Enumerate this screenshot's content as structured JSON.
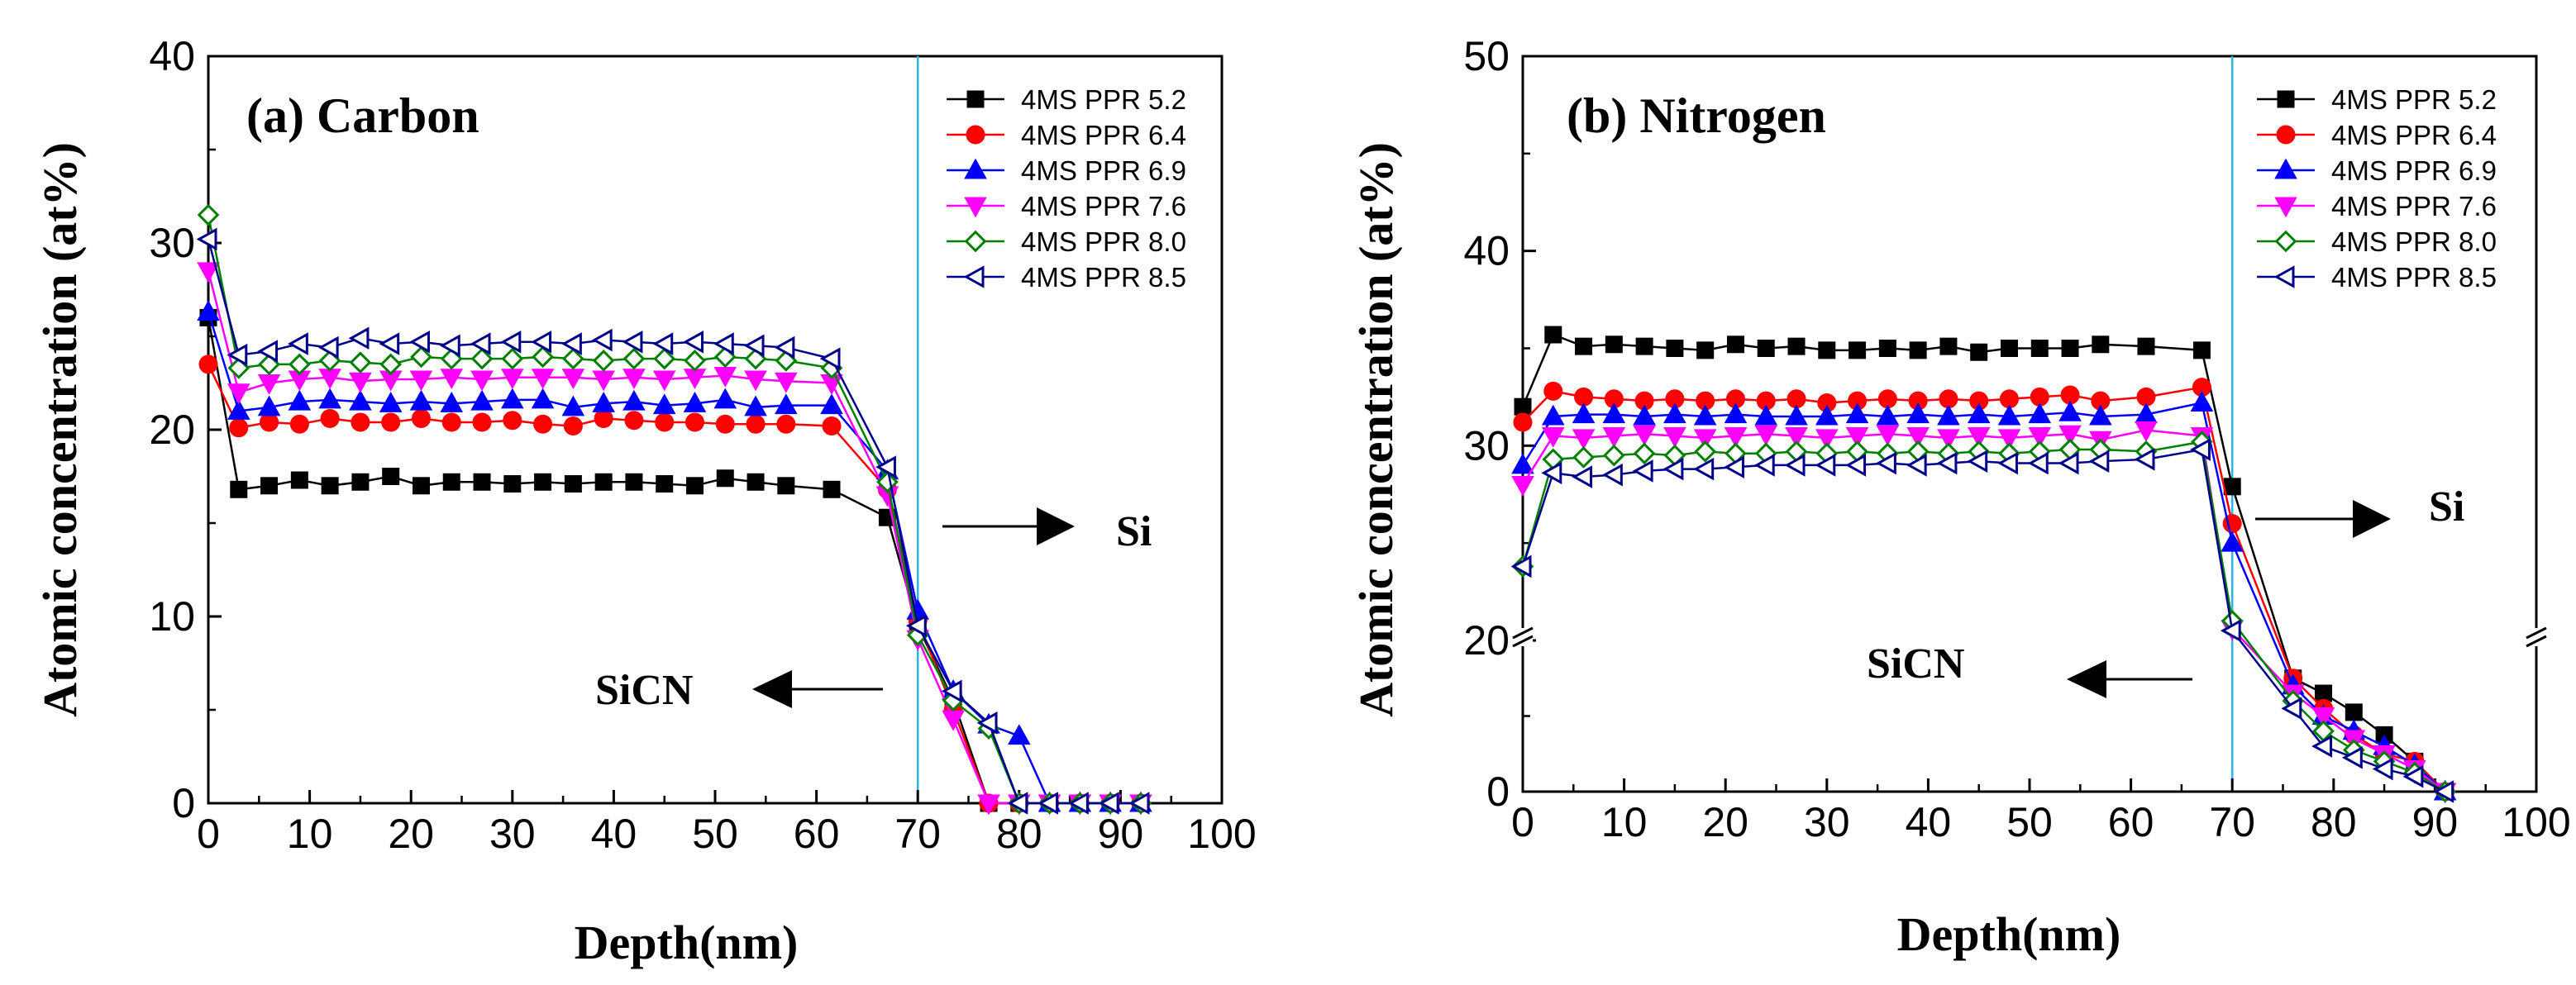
{
  "chart_data": [
    {
      "type": "line",
      "title": "(a) Carbon",
      "xlabel": "Depth(nm)",
      "ylabel": "Atomic concentration (at%)",
      "xlim": [
        0,
        100
      ],
      "ylim": [
        0,
        40
      ],
      "xticks": [
        0,
        10,
        20,
        30,
        40,
        50,
        60,
        70,
        80,
        90,
        100
      ],
      "yticks": [
        0,
        10,
        20,
        30,
        40
      ],
      "xtick_labels": [
        "0",
        "10",
        "20",
        "30",
        "40",
        "50",
        "60",
        "70",
        "80",
        "90",
        "100"
      ],
      "ytick_labels": [
        "0",
        "10",
        "20",
        "30",
        "40"
      ],
      "interface_x": 70,
      "annotations": {
        "right_label": "Si",
        "left_label": "SiCN"
      },
      "series": [
        {
          "name": "4MS PPR 5.2",
          "color": "#000000",
          "marker": "square",
          "filled": true,
          "x": [
            0,
            3,
            6,
            9,
            12,
            15,
            18,
            21,
            24,
            27,
            30,
            33,
            36,
            39,
            42,
            45,
            48,
            51,
            54,
            57,
            61.5,
            67,
            70,
            73.5,
            77,
            80,
            83,
            86,
            89,
            92
          ],
          "y": [
            26,
            16.8,
            17,
            17.3,
            17,
            17.2,
            17.5,
            17,
            17.2,
            17.2,
            17.1,
            17.2,
            17.1,
            17.2,
            17.2,
            17.1,
            17,
            17.4,
            17.2,
            17,
            16.8,
            15.3,
            9.5,
            5.5,
            0,
            0,
            0,
            0,
            0,
            0
          ]
        },
        {
          "name": "4MS PPR 6.4",
          "color": "#ff0000",
          "marker": "circle",
          "filled": true,
          "x": [
            0,
            3,
            6,
            9,
            12,
            15,
            18,
            21,
            24,
            27,
            30,
            33,
            36,
            39,
            42,
            45,
            48,
            51,
            54,
            57,
            61.5,
            67,
            70,
            73.5,
            77,
            80,
            83,
            86,
            89,
            92
          ],
          "y": [
            23.5,
            20.1,
            20.4,
            20.3,
            20.6,
            20.4,
            20.4,
            20.6,
            20.4,
            20.4,
            20.5,
            20.3,
            20.2,
            20.6,
            20.5,
            20.4,
            20.4,
            20.3,
            20.3,
            20.3,
            20.2,
            16.8,
            9.8,
            5,
            0,
            0,
            0,
            0,
            0,
            0
          ]
        },
        {
          "name": "4MS PPR 6.9",
          "color": "#0000ff",
          "marker": "triangle-up",
          "filled": true,
          "x": [
            0,
            3,
            6,
            9,
            12,
            15,
            18,
            21,
            24,
            27,
            30,
            33,
            36,
            39,
            42,
            45,
            48,
            51,
            54,
            57,
            61.5,
            67,
            70,
            73.5,
            77,
            80,
            83,
            86,
            89,
            92
          ],
          "y": [
            26.3,
            21,
            21.2,
            21.5,
            21.6,
            21.5,
            21.4,
            21.5,
            21.4,
            21.5,
            21.6,
            21.6,
            21.2,
            21.4,
            21.5,
            21.3,
            21.4,
            21.6,
            21.2,
            21.3,
            21.3,
            17.8,
            10.3,
            6,
            4.2,
            3.6,
            0,
            0,
            0,
            0
          ]
        },
        {
          "name": "4MS PPR 7.6",
          "color": "#ff00ff",
          "marker": "triangle-down",
          "filled": true,
          "x": [
            0,
            3,
            6,
            9,
            12,
            15,
            18,
            21,
            24,
            27,
            30,
            33,
            36,
            39,
            42,
            45,
            48,
            51,
            54,
            57,
            61.5,
            67,
            70,
            73.5,
            77,
            80,
            83,
            86,
            89,
            92
          ],
          "y": [
            28.5,
            22,
            22.5,
            22.7,
            22.8,
            22.6,
            22.7,
            22.7,
            22.8,
            22.7,
            22.8,
            22.8,
            22.8,
            22.7,
            22.8,
            22.7,
            22.8,
            22.9,
            22.7,
            22.6,
            22.5,
            16.5,
            8.8,
            4.5,
            0,
            0,
            0,
            0,
            0,
            0
          ]
        },
        {
          "name": "4MS PPR 8.0",
          "color": "#008000",
          "marker": "diamond",
          "filled": false,
          "x": [
            0,
            3,
            6,
            9,
            12,
            15,
            18,
            21,
            24,
            27,
            30,
            33,
            36,
            39,
            42,
            45,
            48,
            51,
            54,
            57,
            61.5,
            67,
            70,
            73.5,
            77,
            80,
            83,
            86,
            89,
            92
          ],
          "y": [
            31.5,
            23.3,
            23.5,
            23.5,
            23.7,
            23.6,
            23.5,
            23.9,
            23.8,
            23.8,
            23.8,
            23.9,
            23.8,
            23.7,
            23.8,
            23.8,
            23.7,
            23.9,
            23.8,
            23.7,
            23.3,
            17.2,
            9,
            5.5,
            4,
            0,
            0,
            0,
            0,
            0
          ]
        },
        {
          "name": "4MS PPR 8.5",
          "color": "#00008b",
          "marker": "triangle-left",
          "filled": false,
          "x": [
            0,
            3,
            6,
            9,
            12,
            15,
            18,
            21,
            24,
            27,
            30,
            33,
            36,
            39,
            42,
            45,
            48,
            51,
            54,
            57,
            61.5,
            67,
            70,
            73.5,
            77,
            80,
            83,
            86,
            89,
            92
          ],
          "y": [
            30.2,
            24,
            24.2,
            24.6,
            24.4,
            24.9,
            24.6,
            24.7,
            24.5,
            24.6,
            24.7,
            24.7,
            24.6,
            24.8,
            24.7,
            24.6,
            24.7,
            24.6,
            24.5,
            24.4,
            23.8,
            18,
            9.5,
            6,
            4.3,
            0,
            0,
            0,
            0,
            0
          ]
        }
      ]
    },
    {
      "type": "line",
      "title": "(b) Nitrogen",
      "xlabel": "Depth(nm)",
      "ylabel": "Atomic concentration (at%)",
      "xlim": [
        0,
        100
      ],
      "ylim": [
        0,
        50
      ],
      "axis_break": {
        "value": 20,
        "note": "y-axis broken; 0-20 compressed, 20-50 linear"
      },
      "xticks": [
        0,
        10,
        20,
        30,
        40,
        50,
        60,
        70,
        80,
        90,
        100
      ],
      "yticks": [
        0,
        20,
        30,
        40,
        50
      ],
      "xtick_labels": [
        "0",
        "10",
        "20",
        "30",
        "40",
        "50",
        "60",
        "70",
        "80",
        "90",
        "100"
      ],
      "ytick_labels": [
        "0",
        "20",
        "30",
        "40",
        "50"
      ],
      "interface_x": 70,
      "annotations": {
        "right_label": "Si",
        "left_label": "SiCN"
      },
      "series": [
        {
          "name": "4MS PPR 5.2",
          "color": "#000000",
          "marker": "square",
          "filled": true,
          "x": [
            0,
            3,
            6,
            9,
            12,
            15,
            18,
            21,
            24,
            27,
            30,
            33,
            36,
            39,
            42,
            45,
            48,
            51,
            54,
            57,
            61.5,
            67,
            70,
            76,
            79,
            82,
            85,
            88,
            91
          ],
          "y": [
            32,
            35.7,
            35.1,
            35.2,
            35.1,
            35,
            34.9,
            35.2,
            35,
            35.1,
            34.9,
            34.9,
            35,
            34.9,
            35.1,
            34.8,
            35,
            35,
            35,
            35.2,
            35.1,
            34.9,
            27.9,
            15,
            13,
            10.5,
            7.5,
            4,
            0
          ]
        },
        {
          "name": "4MS PPR 6.4",
          "color": "#ff0000",
          "marker": "circle",
          "filled": true,
          "x": [
            0,
            3,
            6,
            9,
            12,
            15,
            18,
            21,
            24,
            27,
            30,
            33,
            36,
            39,
            42,
            45,
            48,
            51,
            54,
            57,
            61.5,
            67,
            70,
            76,
            79,
            82,
            85,
            88,
            91
          ],
          "y": [
            31.2,
            32.8,
            32.5,
            32.4,
            32.3,
            32.4,
            32.3,
            32.4,
            32.3,
            32.4,
            32.2,
            32.3,
            32.4,
            32.3,
            32.4,
            32.3,
            32.4,
            32.5,
            32.6,
            32.3,
            32.5,
            33,
            26,
            15,
            11,
            7.5,
            5,
            4,
            0
          ]
        },
        {
          "name": "4MS PPR 6.9",
          "color": "#0000ff",
          "marker": "triangle-up",
          "filled": true,
          "x": [
            0,
            3,
            6,
            9,
            12,
            15,
            18,
            21,
            24,
            27,
            30,
            33,
            36,
            39,
            42,
            45,
            48,
            51,
            54,
            57,
            61.5,
            67,
            70,
            76,
            79,
            82,
            85,
            88,
            91
          ],
          "y": [
            29,
            31.5,
            31.6,
            31.6,
            31.5,
            31.6,
            31.5,
            31.6,
            31.5,
            31.5,
            31.5,
            31.6,
            31.5,
            31.6,
            31.5,
            31.6,
            31.5,
            31.6,
            31.7,
            31.5,
            31.6,
            32.2,
            25,
            14,
            10,
            8,
            6,
            3.5,
            0
          ]
        },
        {
          "name": "4MS PPR 7.6",
          "color": "#ff00ff",
          "marker": "triangle-down",
          "filled": true,
          "x": [
            0,
            3,
            6,
            9,
            12,
            15,
            18,
            21,
            24,
            27,
            30,
            33,
            36,
            39,
            42,
            45,
            48,
            51,
            54,
            57,
            61.5,
            67,
            70,
            76,
            79,
            82,
            85,
            88,
            91
          ],
          "y": [
            28,
            30.5,
            30.4,
            30.5,
            30.6,
            30.5,
            30.4,
            30.5,
            30.6,
            30.5,
            30.4,
            30.5,
            30.6,
            30.5,
            30.4,
            30.5,
            30.4,
            30.5,
            30.6,
            30.3,
            30.8,
            30.5,
            20.6,
            13,
            10,
            7,
            5,
            3,
            0
          ]
        },
        {
          "name": "4MS PPR 8.0",
          "color": "#008000",
          "marker": "diamond",
          "filled": false,
          "x": [
            0,
            3,
            6,
            9,
            12,
            15,
            18,
            21,
            24,
            27,
            30,
            33,
            36,
            39,
            42,
            45,
            48,
            51,
            54,
            57,
            61.5,
            67,
            70,
            76,
            79,
            82,
            85,
            88,
            91
          ],
          "y": [
            23.8,
            29.3,
            29.4,
            29.5,
            29.6,
            29.5,
            29.7,
            29.6,
            29.6,
            29.7,
            29.6,
            29.7,
            29.6,
            29.7,
            29.6,
            29.7,
            29.6,
            29.7,
            29.8,
            29.8,
            29.7,
            30.2,
            21,
            12,
            8,
            5.5,
            4,
            2.5,
            0
          ]
        },
        {
          "name": "4MS PPR 8.5",
          "color": "#00008b",
          "marker": "triangle-left",
          "filled": false,
          "x": [
            0,
            3,
            6,
            9,
            12,
            15,
            18,
            21,
            24,
            27,
            30,
            33,
            36,
            39,
            42,
            45,
            48,
            51,
            54,
            57,
            61.5,
            67,
            70,
            76,
            79,
            82,
            85,
            88,
            91
          ],
          "y": [
            23.8,
            28.6,
            28.4,
            28.5,
            28.7,
            28.8,
            28.8,
            28.9,
            29,
            29,
            29,
            29,
            29.1,
            29,
            29.1,
            29.2,
            29.1,
            29.1,
            29.1,
            29.2,
            29.3,
            29.8,
            20.5,
            11,
            6,
            4.5,
            3,
            2,
            0
          ]
        }
      ]
    }
  ]
}
